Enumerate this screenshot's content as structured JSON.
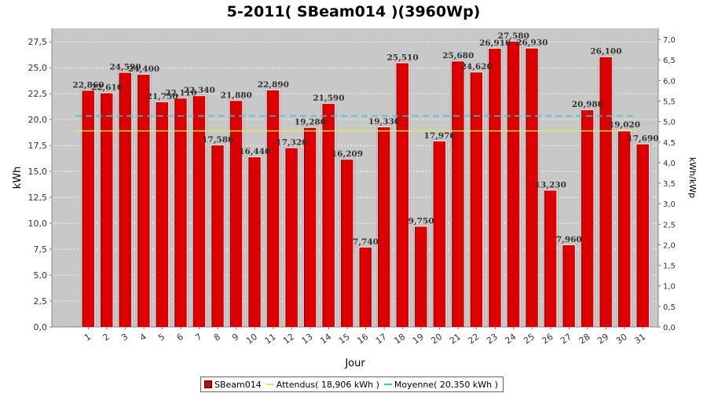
{
  "chart_data": {
    "type": "bar",
    "title": "5-2011( SBeam014 )(3960Wp)",
    "xlabel": "Jour",
    "ylabel": "kWh",
    "y2label": "kWh/kWp",
    "ylim": [
      0,
      28.8
    ],
    "y2lim": [
      0,
      7.27
    ],
    "yticks": [
      "0,0",
      "2,5",
      "5,0",
      "7,5",
      "10,0",
      "12,5",
      "15,0",
      "17,5",
      "20,0",
      "22,5",
      "25,0",
      "27,5"
    ],
    "y2ticks": [
      "0,0",
      "0,5",
      "1,0",
      "1,5",
      "2,0",
      "2,5",
      "3,0",
      "3,5",
      "4,0",
      "4,5",
      "5,0",
      "5,5",
      "6,0",
      "6,5",
      "7,0"
    ],
    "categories": [
      "1",
      "2",
      "3",
      "4",
      "5",
      "6",
      "7",
      "8",
      "9",
      "10",
      "11",
      "12",
      "13",
      "14",
      "15",
      "16",
      "17",
      "18",
      "19",
      "20",
      "21",
      "22",
      "23",
      "24",
      "25",
      "26",
      "27",
      "28",
      "29",
      "30",
      "31"
    ],
    "series": [
      {
        "name": "SBeam014",
        "color": "#dd0000",
        "values": [
          22.86,
          22.61,
          24.59,
          24.4,
          21.75,
          22.11,
          22.34,
          17.58,
          21.88,
          16.44,
          22.89,
          17.32,
          19.28,
          21.59,
          16.209,
          7.74,
          19.33,
          25.51,
          9.75,
          17.97,
          25.68,
          24.62,
          26.91,
          27.58,
          26.93,
          13.23,
          7.96,
          20.98,
          26.1,
          19.02,
          17.69
        ],
        "labels": [
          "22,860",
          "22,610",
          "24,590",
          "24,400",
          "21,750",
          "22,110",
          "22,340",
          "17,580",
          "21,880",
          "16,440",
          "22,890",
          "17,320",
          "19,280",
          "21,590",
          "16,209",
          "7,740",
          "19,330",
          "25,510",
          "9,750",
          "17,970",
          "25,680",
          "24,620",
          "26,910",
          "27,580",
          "26,930",
          "13,230",
          "7,960",
          "20,980",
          "26,100",
          "19,020",
          "17,690"
        ]
      }
    ],
    "reference_lines": [
      {
        "name": "Attendus( 18,906 kWh )",
        "value": 18.906,
        "color": "#e8e860"
      },
      {
        "name": "Moyenne( 20,350 kWh )",
        "value": 20.35,
        "color": "#33cccc"
      }
    ],
    "grid": true,
    "legend_position": "bottom"
  }
}
